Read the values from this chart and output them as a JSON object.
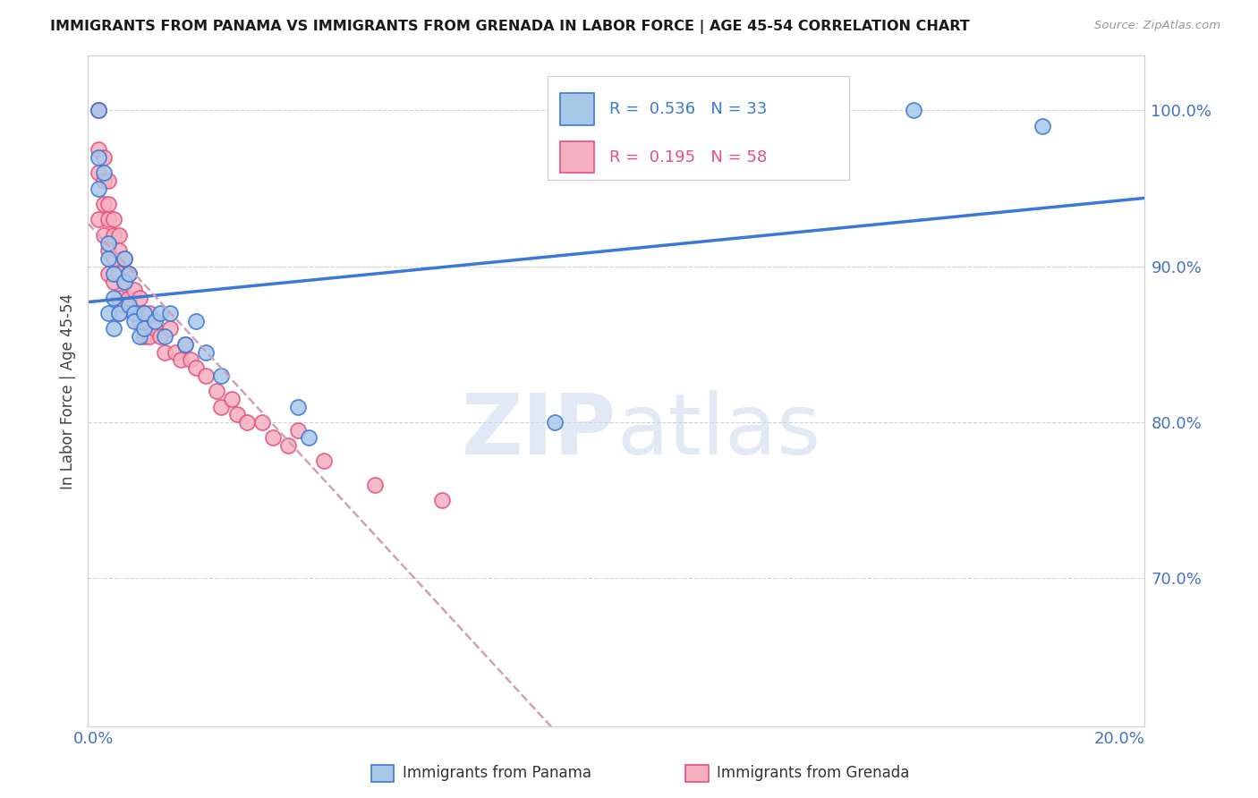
{
  "title": "IMMIGRANTS FROM PANAMA VS IMMIGRANTS FROM GRENADA IN LABOR FORCE | AGE 45-54 CORRELATION CHART",
  "source": "Source: ZipAtlas.com",
  "ylabel": "In Labor Force | Age 45-54",
  "watermark_zip": "ZIP",
  "watermark_atlas": "atlas",
  "legend_panama": "Immigrants from Panama",
  "legend_grenada": "Immigrants from Grenada",
  "R_panama": 0.536,
  "N_panama": 33,
  "R_grenada": 0.195,
  "N_grenada": 58,
  "xlim": [
    -0.001,
    0.205
  ],
  "ylim": [
    0.605,
    1.035
  ],
  "yticks": [
    0.7,
    0.8,
    0.9,
    1.0
  ],
  "ytick_labels": [
    "70.0%",
    "80.0%",
    "90.0%",
    "100.0%"
  ],
  "xtick_positions": [
    0.0,
    0.04,
    0.08,
    0.12,
    0.16,
    0.2
  ],
  "xtick_labels": [
    "0.0%",
    "",
    "",
    "",
    "",
    "20.0%"
  ],
  "color_panama": "#a8c8e8",
  "color_grenada": "#f5b0c0",
  "line_color_panama": "#3b78d8",
  "line_color_grenada": "#e8507a",
  "dashed_color": "#d0a0b8",
  "axis_color": "#4472c4",
  "grid_color": "#d0d0d0",
  "panama_x": [
    0.001,
    0.001,
    0.001,
    0.002,
    0.003,
    0.003,
    0.003,
    0.004,
    0.004,
    0.004,
    0.005,
    0.006,
    0.006,
    0.007,
    0.007,
    0.008,
    0.008,
    0.009,
    0.01,
    0.01,
    0.012,
    0.013,
    0.014,
    0.015,
    0.018,
    0.02,
    0.022,
    0.025,
    0.04,
    0.042,
    0.09,
    0.16,
    0.185
  ],
  "panama_y": [
    0.97,
    1.0,
    0.95,
    0.96,
    0.915,
    0.905,
    0.87,
    0.895,
    0.88,
    0.86,
    0.87,
    0.905,
    0.89,
    0.895,
    0.875,
    0.87,
    0.865,
    0.855,
    0.87,
    0.86,
    0.865,
    0.87,
    0.855,
    0.87,
    0.85,
    0.865,
    0.845,
    0.83,
    0.81,
    0.79,
    0.8,
    1.0,
    0.99
  ],
  "grenada_x": [
    0.001,
    0.001,
    0.001,
    0.001,
    0.001,
    0.002,
    0.002,
    0.002,
    0.002,
    0.003,
    0.003,
    0.003,
    0.003,
    0.003,
    0.004,
    0.004,
    0.004,
    0.004,
    0.005,
    0.005,
    0.005,
    0.005,
    0.005,
    0.006,
    0.006,
    0.006,
    0.007,
    0.007,
    0.008,
    0.008,
    0.009,
    0.009,
    0.01,
    0.01,
    0.011,
    0.011,
    0.012,
    0.013,
    0.014,
    0.015,
    0.016,
    0.017,
    0.018,
    0.019,
    0.02,
    0.022,
    0.024,
    0.025,
    0.027,
    0.028,
    0.03,
    0.033,
    0.035,
    0.038,
    0.04,
    0.045,
    0.055,
    0.068
  ],
  "grenada_y": [
    1.0,
    1.0,
    0.975,
    0.96,
    0.93,
    0.97,
    0.955,
    0.94,
    0.92,
    0.955,
    0.94,
    0.93,
    0.91,
    0.895,
    0.93,
    0.92,
    0.905,
    0.89,
    0.92,
    0.91,
    0.895,
    0.88,
    0.87,
    0.905,
    0.89,
    0.875,
    0.895,
    0.88,
    0.885,
    0.87,
    0.88,
    0.865,
    0.87,
    0.855,
    0.87,
    0.855,
    0.86,
    0.855,
    0.845,
    0.86,
    0.845,
    0.84,
    0.85,
    0.84,
    0.835,
    0.83,
    0.82,
    0.81,
    0.815,
    0.805,
    0.8,
    0.8,
    0.79,
    0.785,
    0.795,
    0.775,
    0.76,
    0.75
  ]
}
